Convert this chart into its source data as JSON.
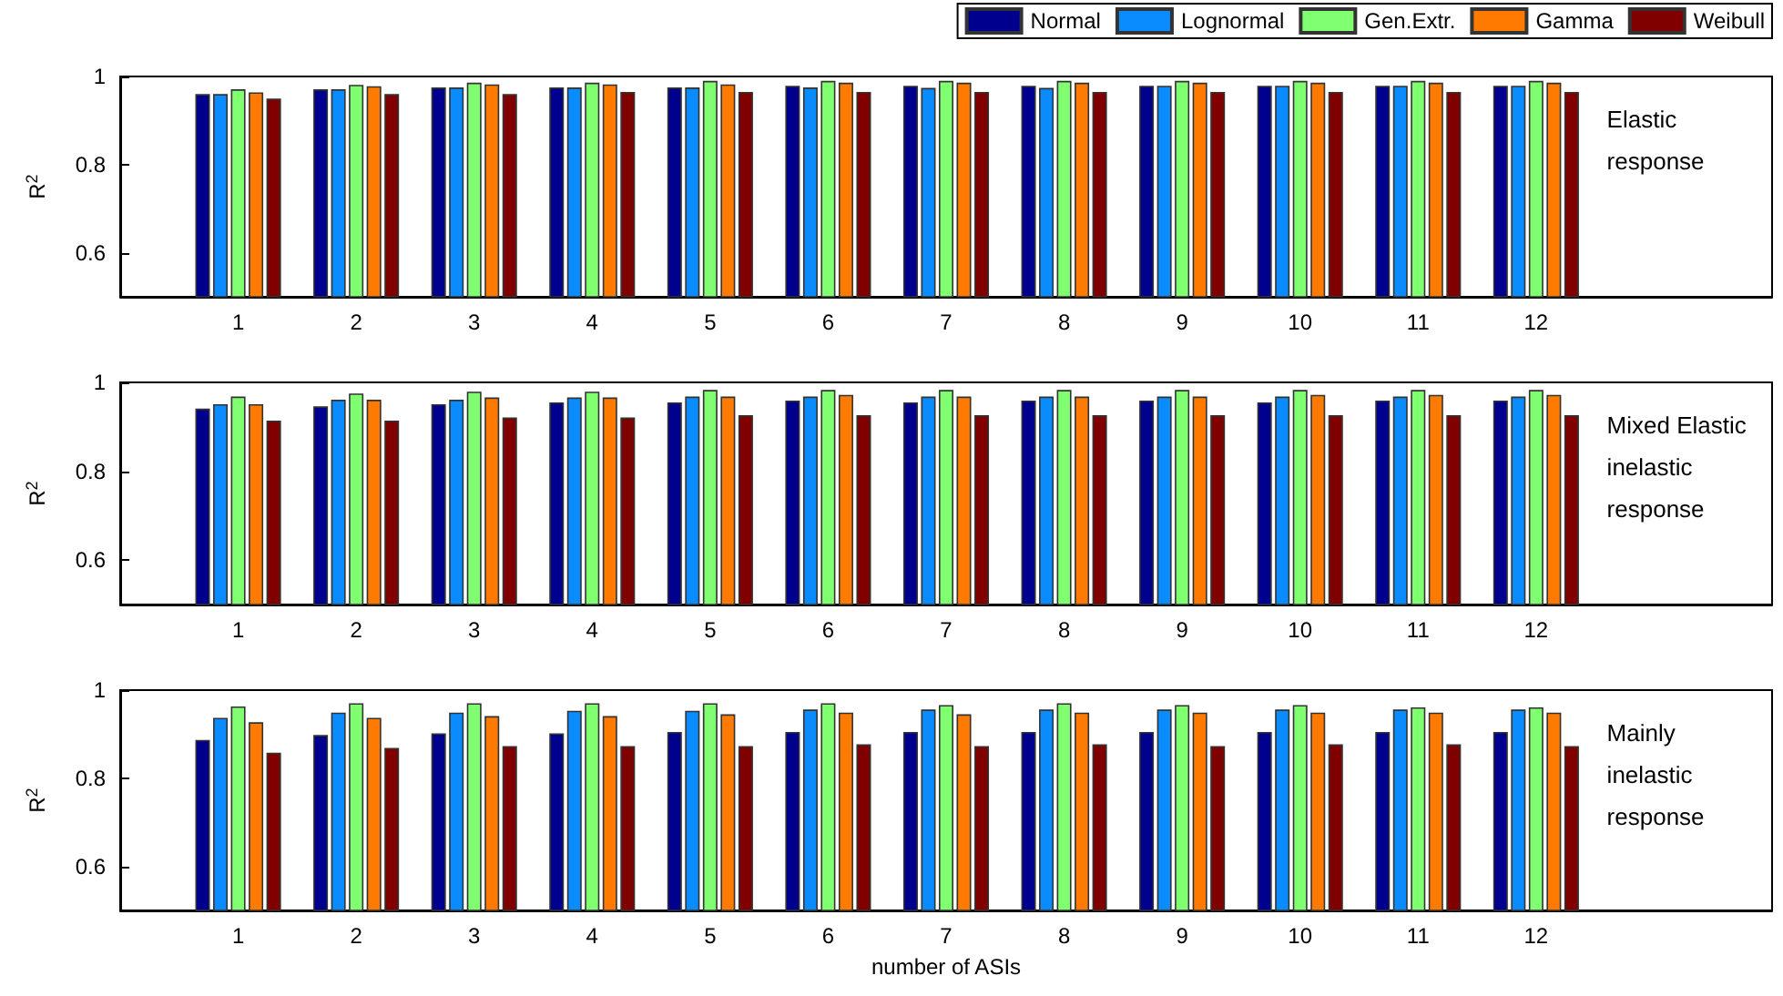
{
  "chart_data": [
    {
      "type": "bar",
      "ylabel": "R$^{2}$",
      "x": [
        1,
        2,
        3,
        4,
        5,
        6,
        7,
        8,
        9,
        10,
        11,
        12
      ],
      "xlim": [
        0,
        14
      ],
      "xticks": [
        1,
        2,
        3,
        4,
        5,
        6,
        7,
        8,
        9,
        10,
        11,
        12
      ],
      "ylim": [
        0.5,
        1
      ],
      "yticks": [
        0.6,
        0.8,
        1
      ],
      "grid": false,
      "legend": "top right",
      "annotations": [
        "Elastic response"
      ],
      "series": [
        {
          "name": "Normal",
          "color": "#00008f",
          "values": [
            0.96,
            0.971,
            0.975,
            0.975,
            0.975,
            0.979,
            0.979,
            0.979,
            0.979,
            0.979,
            0.979,
            0.979
          ]
        },
        {
          "name": "Lognormal",
          "color": "#0a8cff",
          "values": [
            0.96,
            0.971,
            0.975,
            0.975,
            0.975,
            0.975,
            0.974,
            0.974,
            0.979,
            0.979,
            0.979,
            0.979
          ]
        },
        {
          "name": "Gen.Extr.",
          "color": "#80ff70",
          "values": [
            0.971,
            0.981,
            0.986,
            0.986,
            0.99,
            0.99,
            0.99,
            0.99,
            0.99,
            0.99,
            0.99,
            0.99
          ]
        },
        {
          "name": "Gamma",
          "color": "#ff7a00",
          "values": [
            0.964,
            0.978,
            0.982,
            0.982,
            0.982,
            0.986,
            0.986,
            0.986,
            0.986,
            0.986,
            0.986,
            0.986
          ]
        },
        {
          "name": "Weibull",
          "color": "#800000",
          "values": [
            0.95,
            0.96,
            0.96,
            0.965,
            0.965,
            0.965,
            0.965,
            0.965,
            0.965,
            0.965,
            0.965,
            0.965
          ]
        }
      ]
    },
    {
      "type": "bar",
      "ylabel": "R$^{2}$",
      "x": [
        1,
        2,
        3,
        4,
        5,
        6,
        7,
        8,
        9,
        10,
        11,
        12
      ],
      "xlim": [
        0,
        14
      ],
      "xticks": [
        1,
        2,
        3,
        4,
        5,
        6,
        7,
        8,
        9,
        10,
        11,
        12
      ],
      "ylim": [
        0.5,
        1
      ],
      "yticks": [
        0.6,
        0.8,
        1
      ],
      "grid": false,
      "annotations": [
        "Mixed Elastic inelastic response"
      ],
      "series": [
        {
          "color": "#00008f",
          "values": [
            0.941,
            0.946,
            0.951,
            0.955,
            0.955,
            0.959,
            0.955,
            0.959,
            0.959,
            0.955,
            0.959,
            0.959
          ]
        },
        {
          "color": "#0a8cff",
          "values": [
            0.951,
            0.961,
            0.961,
            0.966,
            0.968,
            0.968,
            0.968,
            0.968,
            0.968,
            0.968,
            0.968,
            0.968
          ]
        },
        {
          "color": "#80ff70",
          "values": [
            0.968,
            0.975,
            0.979,
            0.979,
            0.983,
            0.983,
            0.983,
            0.983,
            0.983,
            0.983,
            0.983,
            0.983
          ]
        },
        {
          "color": "#ff7a00",
          "values": [
            0.951,
            0.961,
            0.966,
            0.966,
            0.968,
            0.972,
            0.968,
            0.968,
            0.968,
            0.972,
            0.972,
            0.972
          ]
        },
        {
          "color": "#800000",
          "values": [
            0.914,
            0.914,
            0.921,
            0.921,
            0.926,
            0.926,
            0.926,
            0.926,
            0.926,
            0.926,
            0.926,
            0.926
          ]
        }
      ]
    },
    {
      "type": "bar",
      "ylabel": "R$^{2}$",
      "xlabel": "number of ASIs",
      "x": [
        1,
        2,
        3,
        4,
        5,
        6,
        7,
        8,
        9,
        10,
        11,
        12
      ],
      "xlim": [
        0,
        14
      ],
      "xticks": [
        1,
        2,
        3,
        4,
        5,
        6,
        7,
        8,
        9,
        10,
        11,
        12
      ],
      "ylim": [
        0.5,
        1
      ],
      "yticks": [
        0.6,
        0.8,
        1
      ],
      "grid": false,
      "annotations": [
        "Mainly inelastic response"
      ],
      "series": [
        {
          "color": "#00008f",
          "values": [
            0.887,
            0.898,
            0.902,
            0.902,
            0.905,
            0.905,
            0.905,
            0.905,
            0.905,
            0.905,
            0.905,
            0.905
          ]
        },
        {
          "color": "#0a8cff",
          "values": [
            0.937,
            0.949,
            0.949,
            0.953,
            0.953,
            0.956,
            0.956,
            0.956,
            0.956,
            0.956,
            0.956,
            0.956
          ]
        },
        {
          "color": "#80ff70",
          "values": [
            0.963,
            0.97,
            0.97,
            0.97,
            0.97,
            0.97,
            0.966,
            0.97,
            0.966,
            0.966,
            0.961,
            0.961
          ]
        },
        {
          "color": "#ff7a00",
          "values": [
            0.927,
            0.937,
            0.941,
            0.941,
            0.945,
            0.949,
            0.945,
            0.949,
            0.949,
            0.949,
            0.949,
            0.949
          ]
        },
        {
          "color": "#800000",
          "values": [
            0.858,
            0.869,
            0.873,
            0.873,
            0.873,
            0.877,
            0.873,
            0.877,
            0.873,
            0.877,
            0.877,
            0.873
          ]
        }
      ]
    }
  ]
}
